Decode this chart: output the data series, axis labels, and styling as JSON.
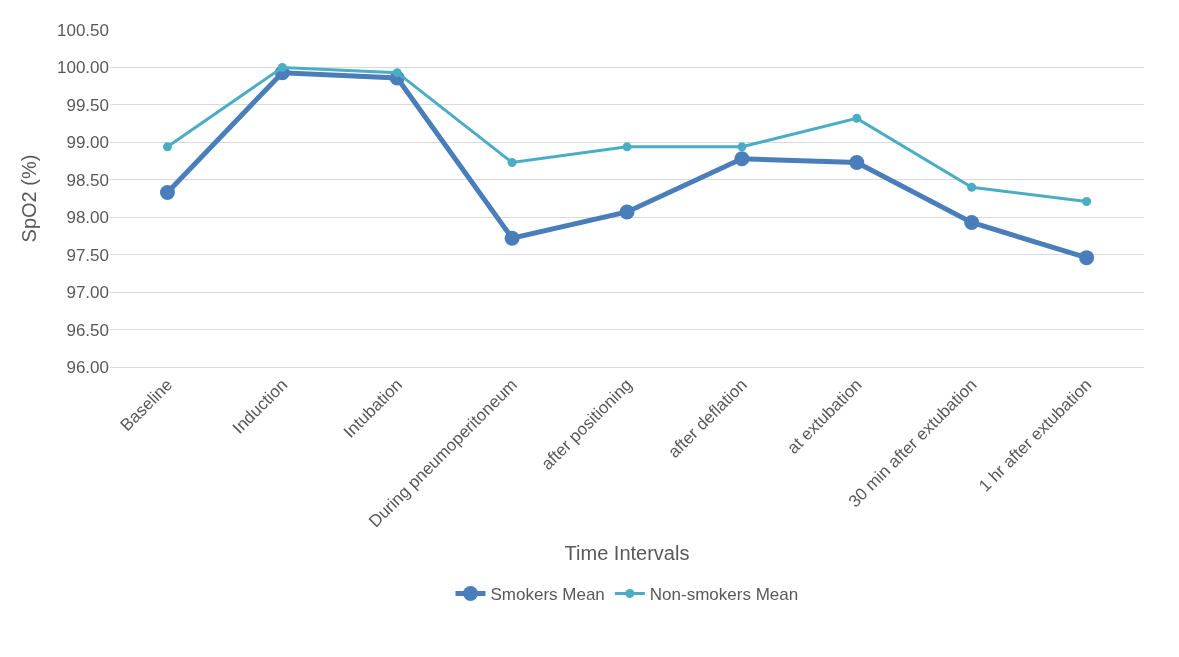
{
  "chart_data": {
    "type": "line",
    "xlabel": "Time Intervals",
    "ylabel": "SpO2 (%)",
    "categories": [
      "Baseline",
      "Induction",
      "Intubation",
      "During pneumoperitoneum",
      "after positioning",
      "after deflation",
      "at extubation",
      "30 min after extubation",
      "1 hr after extubation"
    ],
    "series": [
      {
        "name": "Smokers Mean",
        "color": "#4a7ebb",
        "values": [
          98.33,
          99.93,
          99.86,
          97.72,
          98.07,
          98.78,
          98.73,
          97.93,
          97.46
        ]
      },
      {
        "name": "Non-smokers Mean",
        "color": "#4bacc6",
        "values": [
          98.94,
          100.0,
          99.93,
          98.73,
          98.94,
          98.94,
          99.32,
          98.4,
          98.21
        ]
      }
    ],
    "ylim": [
      96.0,
      100.5
    ],
    "yticks": [
      {
        "value": 96.0,
        "label": "96.00"
      },
      {
        "value": 96.5,
        "label": "96.50"
      },
      {
        "value": 97.0,
        "label": "97.00"
      },
      {
        "value": 97.5,
        "label": "97.50"
      },
      {
        "value": 98.0,
        "label": "98.00"
      },
      {
        "value": 98.5,
        "label": "98.50"
      },
      {
        "value": 99.0,
        "label": "99.00"
      },
      {
        "value": 99.5,
        "label": "99.50"
      },
      {
        "value": 100.0,
        "label": "100.00"
      },
      {
        "value": 100.5,
        "label": "100.50"
      }
    ],
    "grid": "y",
    "legend": "bottom",
    "marker": "circle",
    "line_style": "solid"
  }
}
